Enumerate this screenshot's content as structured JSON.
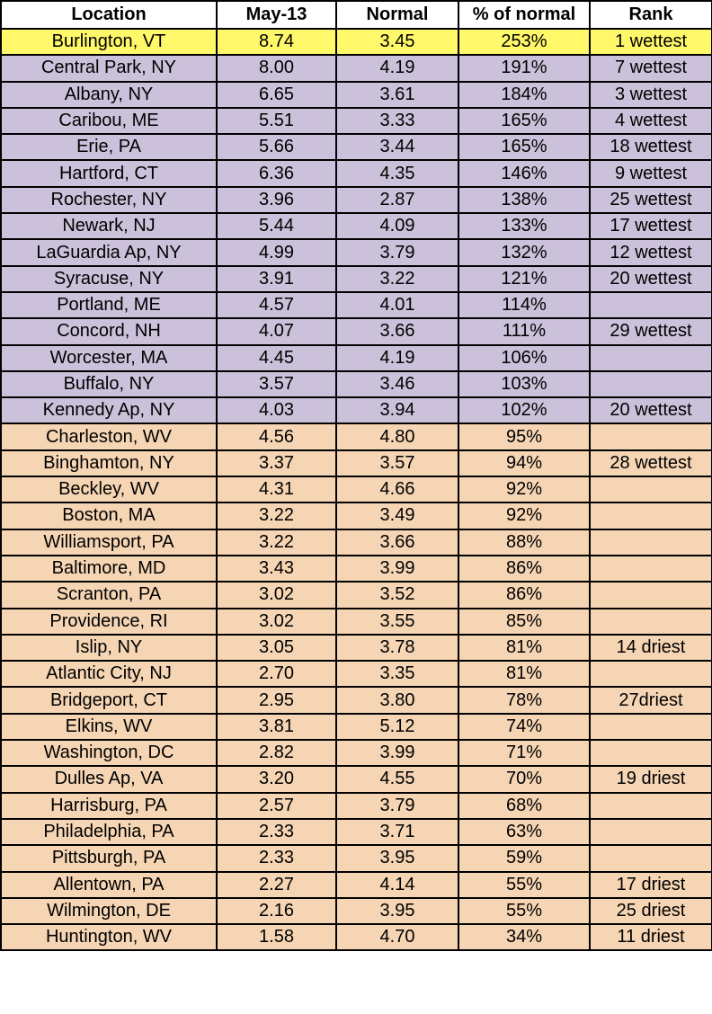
{
  "headers": [
    "Location",
    "May-13",
    "Normal",
    "% of normal",
    "Rank"
  ],
  "colors": {
    "top": "#FFF86A",
    "above_normal": "#CCC1DA",
    "below_normal": "#F5D5B4"
  },
  "rows": [
    {
      "group": "top",
      "location": "Burlington, VT",
      "may13": "8.74",
      "normal": "3.45",
      "pct": "253%",
      "rank": "1 wettest"
    },
    {
      "group": "above",
      "location": "Central Park, NY",
      "may13": "8.00",
      "normal": "4.19",
      "pct": "191%",
      "rank": "7 wettest"
    },
    {
      "group": "above",
      "location": "Albany, NY",
      "may13": "6.65",
      "normal": "3.61",
      "pct": "184%",
      "rank": "3 wettest"
    },
    {
      "group": "above",
      "location": "Caribou, ME",
      "may13": "5.51",
      "normal": "3.33",
      "pct": "165%",
      "rank": "4 wettest"
    },
    {
      "group": "above",
      "location": "Erie, PA",
      "may13": "5.66",
      "normal": "3.44",
      "pct": "165%",
      "rank": "18 wettest"
    },
    {
      "group": "above",
      "location": "Hartford, CT",
      "may13": "6.36",
      "normal": "4.35",
      "pct": "146%",
      "rank": "9 wettest"
    },
    {
      "group": "above",
      "location": "Rochester, NY",
      "may13": "3.96",
      "normal": "2.87",
      "pct": "138%",
      "rank": "25 wettest"
    },
    {
      "group": "above",
      "location": "Newark, NJ",
      "may13": "5.44",
      "normal": "4.09",
      "pct": "133%",
      "rank": "17 wettest"
    },
    {
      "group": "above",
      "location": "LaGuardia Ap, NY",
      "may13": "4.99",
      "normal": "3.79",
      "pct": "132%",
      "rank": "12 wettest"
    },
    {
      "group": "above",
      "location": "Syracuse, NY",
      "may13": "3.91",
      "normal": "3.22",
      "pct": "121%",
      "rank": "20 wettest"
    },
    {
      "group": "above",
      "location": "Portland, ME",
      "may13": "4.57",
      "normal": "4.01",
      "pct": "114%",
      "rank": ""
    },
    {
      "group": "above",
      "location": "Concord, NH",
      "may13": "4.07",
      "normal": "3.66",
      "pct": "111%",
      "rank": "29 wettest"
    },
    {
      "group": "above",
      "location": "Worcester, MA",
      "may13": "4.45",
      "normal": "4.19",
      "pct": "106%",
      "rank": ""
    },
    {
      "group": "above",
      "location": "Buffalo, NY",
      "may13": "3.57",
      "normal": "3.46",
      "pct": "103%",
      "rank": ""
    },
    {
      "group": "above",
      "location": "Kennedy Ap, NY",
      "may13": "4.03",
      "normal": "3.94",
      "pct": "102%",
      "rank": "20 wettest"
    },
    {
      "group": "below",
      "location": "Charleston, WV",
      "may13": "4.56",
      "normal": "4.80",
      "pct": "95%",
      "rank": ""
    },
    {
      "group": "below",
      "location": "Binghamton, NY",
      "may13": "3.37",
      "normal": "3.57",
      "pct": "94%",
      "rank": "28 wettest"
    },
    {
      "group": "below",
      "location": "Beckley, WV",
      "may13": "4.31",
      "normal": "4.66",
      "pct": "92%",
      "rank": ""
    },
    {
      "group": "below",
      "location": "Boston, MA",
      "may13": "3.22",
      "normal": "3.49",
      "pct": "92%",
      "rank": ""
    },
    {
      "group": "below",
      "location": "Williamsport, PA",
      "may13": "3.22",
      "normal": "3.66",
      "pct": "88%",
      "rank": ""
    },
    {
      "group": "below",
      "location": "Baltimore, MD",
      "may13": "3.43",
      "normal": "3.99",
      "pct": "86%",
      "rank": ""
    },
    {
      "group": "below",
      "location": "Scranton, PA",
      "may13": "3.02",
      "normal": "3.52",
      "pct": "86%",
      "rank": ""
    },
    {
      "group": "below",
      "location": "Providence, RI",
      "may13": "3.02",
      "normal": "3.55",
      "pct": "85%",
      "rank": ""
    },
    {
      "group": "below",
      "location": "Islip, NY",
      "may13": "3.05",
      "normal": "3.78",
      "pct": "81%",
      "rank": "14 driest"
    },
    {
      "group": "below",
      "location": "Atlantic City, NJ",
      "may13": "2.70",
      "normal": "3.35",
      "pct": "81%",
      "rank": ""
    },
    {
      "group": "below",
      "location": "Bridgeport, CT",
      "may13": "2.95",
      "normal": "3.80",
      "pct": "78%",
      "rank": "27driest"
    },
    {
      "group": "below",
      "location": "Elkins, WV",
      "may13": "3.81",
      "normal": "5.12",
      "pct": "74%",
      "rank": ""
    },
    {
      "group": "below",
      "location": "Washington, DC",
      "may13": "2.82",
      "normal": "3.99",
      "pct": "71%",
      "rank": ""
    },
    {
      "group": "below",
      "location": "Dulles Ap, VA",
      "may13": "3.20",
      "normal": "4.55",
      "pct": "70%",
      "rank": "19 driest"
    },
    {
      "group": "below",
      "location": "Harrisburg, PA",
      "may13": "2.57",
      "normal": "3.79",
      "pct": "68%",
      "rank": ""
    },
    {
      "group": "below",
      "location": "Philadelphia, PA",
      "may13": "2.33",
      "normal": "3.71",
      "pct": "63%",
      "rank": ""
    },
    {
      "group": "below",
      "location": "Pittsburgh, PA",
      "may13": "2.33",
      "normal": "3.95",
      "pct": "59%",
      "rank": ""
    },
    {
      "group": "below",
      "location": "Allentown, PA",
      "may13": "2.27",
      "normal": "4.14",
      "pct": "55%",
      "rank": "17 driest"
    },
    {
      "group": "below",
      "location": "Wilmington, DE",
      "may13": "2.16",
      "normal": "3.95",
      "pct": "55%",
      "rank": "25 driest"
    },
    {
      "group": "below",
      "location": "Huntington, WV",
      "may13": "1.58",
      "normal": "4.70",
      "pct": "34%",
      "rank": "11 driest"
    }
  ]
}
